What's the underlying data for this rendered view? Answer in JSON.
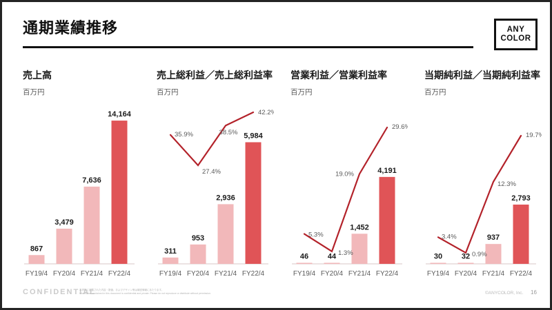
{
  "slide": {
    "title": "通期業績推移",
    "logo": {
      "line1": "ANY",
      "line2": "COLOR"
    },
    "footer": {
      "confidential": "CONFIDENTIAL",
      "disclaimer_jp": "本資料に記載された内容・数値、およびデザイン等は機密情報にあたります。",
      "disclaimer_en": "Information contained in this document is confidential and private. Please do not reproduce or distribute without permission.",
      "copyright": "©ANYCOLOR, Inc.",
      "page_number": "16"
    }
  },
  "colors": {
    "bar_light": "#F2B8BA",
    "bar_dark": "#E05457",
    "line_red": "#B3222A",
    "label_dark": "#1a1a1a",
    "label_gray": "#595959",
    "axis_gray": "#e6dada"
  },
  "chart_data": [
    {
      "type": "bar",
      "title": "売上高",
      "unit": "百万円",
      "categories": [
        "FY19/4",
        "FY20/4",
        "FY21/4",
        "FY22/4"
      ],
      "values": [
        867,
        3479,
        7636,
        14164
      ],
      "value_labels": [
        "867",
        "3,479",
        "7,636",
        "14,164"
      ],
      "highlight_index": 3,
      "ylim": [
        0,
        16000
      ]
    },
    {
      "type": "bar+line",
      "title": "売上総利益／売上総利益率",
      "unit": "百万円",
      "categories": [
        "FY19/4",
        "FY20/4",
        "FY21/4",
        "FY22/4"
      ],
      "values": [
        311,
        953,
        2936,
        5984
      ],
      "value_labels": [
        "311",
        "953",
        "2,936",
        "5,984"
      ],
      "highlight_index": 3,
      "ylim": [
        0,
        8000
      ],
      "line_series": {
        "name": "売上総利益率",
        "values": [
          35.9,
          27.4,
          38.5,
          42.2
        ],
        "labels": [
          "35.9%",
          "27.4%",
          "38.5%",
          "42.2%"
        ]
      }
    },
    {
      "type": "bar+line",
      "title": "営業利益／営業利益率",
      "unit": "百万円",
      "categories": [
        "FY19/4",
        "FY20/4",
        "FY21/4",
        "FY22/4"
      ],
      "values": [
        46,
        44,
        1452,
        4191
      ],
      "value_labels": [
        "46",
        "44",
        "1,452",
        "4,191"
      ],
      "highlight_index": 3,
      "ylim": [
        0,
        7800
      ],
      "line_series": {
        "name": "営業利益率",
        "values": [
          5.3,
          1.3,
          19.0,
          29.6
        ],
        "labels": [
          "5.3%",
          "1.3%",
          "19.0%",
          "29.6%"
        ]
      }
    },
    {
      "type": "bar+line",
      "title": "当期純利益／当期純利益率",
      "unit": "百万円",
      "categories": [
        "FY19/4",
        "FY20/4",
        "FY21/4",
        "FY22/4"
      ],
      "values": [
        30,
        32,
        937,
        2793
      ],
      "value_labels": [
        "30",
        "32",
        "937",
        "2,793"
      ],
      "highlight_index": 3,
      "ylim": [
        0,
        7600
      ],
      "line_series": {
        "name": "当期純利益率",
        "values": [
          3.4,
          0.9,
          12.3,
          19.7
        ],
        "labels": [
          "3.4%",
          "0.9%",
          "12.3%",
          "19.7%"
        ]
      }
    }
  ]
}
